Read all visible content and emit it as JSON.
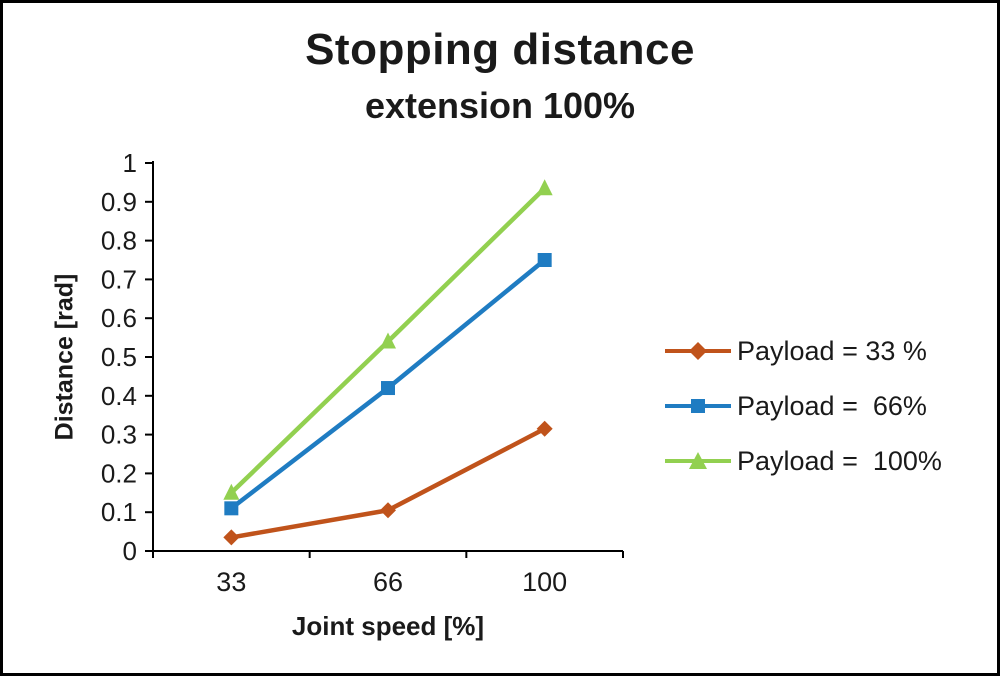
{
  "chart_data": {
    "type": "line",
    "title": "Stopping distance",
    "subtitle": "extension 100%",
    "xlabel": "Joint speed [%]",
    "ylabel": "Distance [rad]",
    "categories": [
      33,
      66,
      100
    ],
    "x_tick_labels": [
      "33",
      "66",
      "100"
    ],
    "ylim": [
      0,
      1
    ],
    "y_tick_step": 0.1,
    "y_tick_labels": [
      "0",
      "0.1",
      "0.2",
      "0.3",
      "0.4",
      "0.5",
      "0.6",
      "0.7",
      "0.8",
      "0.9",
      "1"
    ],
    "grid": false,
    "legend_position": "right",
    "axis_color": "#000000",
    "text_color": "#1a1a1a",
    "series": [
      {
        "name": "Payload = 33 %",
        "color": "#C0531B",
        "marker": "diamond",
        "values": [
          0.035,
          0.105,
          0.315
        ]
      },
      {
        "name": "Payload =  66%",
        "color": "#1F7CC2",
        "marker": "square",
        "values": [
          0.11,
          0.42,
          0.75
        ]
      },
      {
        "name": "Payload =  100%",
        "color": "#92D050",
        "marker": "triangle",
        "values": [
          0.15,
          0.54,
          0.935
        ]
      }
    ]
  }
}
